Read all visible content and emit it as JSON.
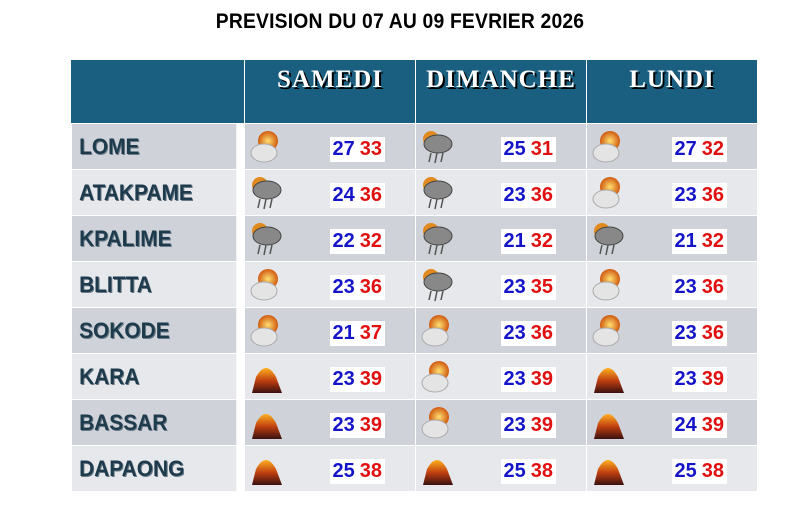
{
  "title": "PREVISION DU 07 AU 09 FEVRIER 2026",
  "days": [
    "SAMEDI",
    "DIMANCHE",
    "LUNDI"
  ],
  "colors": {
    "header": "#1a5e80",
    "min": "#1414c8",
    "max": "#e01010"
  },
  "rows": [
    {
      "city": "LOME",
      "f": [
        {
          "icon": "partly-cloudy",
          "min": "27",
          "max": "33"
        },
        {
          "icon": "thunderstorm",
          "min": "25",
          "max": "31"
        },
        {
          "icon": "partly-cloudy",
          "min": "27",
          "max": "32"
        }
      ]
    },
    {
      "city": "ATAKPAME",
      "f": [
        {
          "icon": "thunderstorm",
          "min": "24",
          "max": "36"
        },
        {
          "icon": "thunderstorm",
          "min": "23",
          "max": "36"
        },
        {
          "icon": "partly-cloudy",
          "min": "23",
          "max": "36"
        }
      ]
    },
    {
      "city": "KPALIME",
      "f": [
        {
          "icon": "thunderstorm",
          "min": "22",
          "max": "32"
        },
        {
          "icon": "thunderstorm",
          "min": "21",
          "max": "32"
        },
        {
          "icon": "thunderstorm",
          "min": "21",
          "max": "32"
        }
      ]
    },
    {
      "city": "BLITTA",
      "f": [
        {
          "icon": "partly-cloudy",
          "min": "23",
          "max": "36"
        },
        {
          "icon": "thunderstorm",
          "min": "23",
          "max": "35"
        },
        {
          "icon": "partly-cloudy",
          "min": "23",
          "max": "36"
        }
      ]
    },
    {
      "city": "SOKODE",
      "f": [
        {
          "icon": "partly-cloudy",
          "min": "21",
          "max": "37"
        },
        {
          "icon": "partly-cloudy",
          "min": "23",
          "max": "36"
        },
        {
          "icon": "partly-cloudy",
          "min": "23",
          "max": "36"
        }
      ]
    },
    {
      "city": "KARA",
      "f": [
        {
          "icon": "hot-haze",
          "min": "23",
          "max": "39"
        },
        {
          "icon": "partly-cloudy",
          "min": "23",
          "max": "39"
        },
        {
          "icon": "hot-haze",
          "min": "23",
          "max": "39"
        }
      ]
    },
    {
      "city": "BASSAR",
      "f": [
        {
          "icon": "hot-haze",
          "min": "23",
          "max": "39"
        },
        {
          "icon": "partly-cloudy",
          "min": "23",
          "max": "39"
        },
        {
          "icon": "hot-haze",
          "min": "24",
          "max": "39"
        }
      ]
    },
    {
      "city": "DAPAONG",
      "f": [
        {
          "icon": "hot-haze",
          "min": "25",
          "max": "38"
        },
        {
          "icon": "hot-haze",
          "min": "25",
          "max": "38"
        },
        {
          "icon": "hot-haze",
          "min": "25",
          "max": "38"
        }
      ]
    }
  ]
}
